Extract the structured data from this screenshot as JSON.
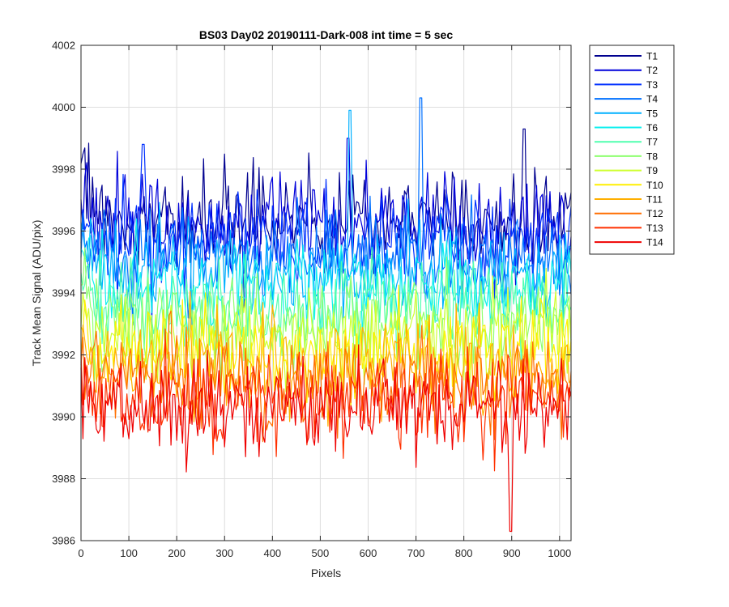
{
  "chart_data": {
    "type": "line",
    "title": "BS03 Day02 20190111-Dark-008 int time = 5 sec",
    "xlabel": "Pixels",
    "ylabel": "Track Mean Signal (ADU/pix)",
    "xlim": [
      0,
      1024
    ],
    "ylim": [
      3986,
      4002
    ],
    "xticks": [
      0,
      100,
      200,
      300,
      400,
      500,
      600,
      700,
      800,
      900,
      1000
    ],
    "yticks": [
      3986,
      3988,
      3990,
      3992,
      3994,
      3996,
      3998,
      4000,
      4002
    ],
    "grid": true,
    "legend_position": "outside-right",
    "sample_step": 4,
    "series": [
      {
        "name": "T1",
        "color": "#00008f",
        "mean": 3996.4,
        "noise": 0.75,
        "extreme_max": 3999.3
      },
      {
        "name": "T2",
        "color": "#0000db",
        "mean": 3996.2,
        "noise": 0.75,
        "extreme_max": 3999.0
      },
      {
        "name": "T3",
        "color": "#0030ff",
        "mean": 3995.7,
        "noise": 0.75,
        "extreme_max": 3998.8
      },
      {
        "name": "T4",
        "color": "#0070ff",
        "mean": 3995.2,
        "noise": 0.75,
        "extreme_max": 4000.3
      },
      {
        "name": "T5",
        "color": "#00b0ff",
        "mean": 3994.7,
        "noise": 0.75,
        "extreme_max": 3999.9
      },
      {
        "name": "T6",
        "color": "#10f0ef",
        "mean": 3994.1,
        "noise": 0.75
      },
      {
        "name": "T7",
        "color": "#50ffaf",
        "mean": 3993.6,
        "noise": 0.75
      },
      {
        "name": "T8",
        "color": "#8fff70",
        "mean": 3993.1,
        "noise": 0.75
      },
      {
        "name": "T9",
        "color": "#cfff30",
        "mean": 3992.6,
        "noise": 0.75
      },
      {
        "name": "T10",
        "color": "#ffef00",
        "mean": 3992.1,
        "noise": 0.75
      },
      {
        "name": "T11",
        "color": "#ffaf00",
        "mean": 3991.6,
        "noise": 0.75
      },
      {
        "name": "T12",
        "color": "#ff6f00",
        "mean": 3991.1,
        "noise": 0.75
      },
      {
        "name": "T13",
        "color": "#ff3000",
        "mean": 3990.6,
        "noise": 0.75
      },
      {
        "name": "T14",
        "color": "#ef0000",
        "mean": 3990.3,
        "noise": 0.75,
        "extreme_min": 3986.3
      }
    ]
  }
}
